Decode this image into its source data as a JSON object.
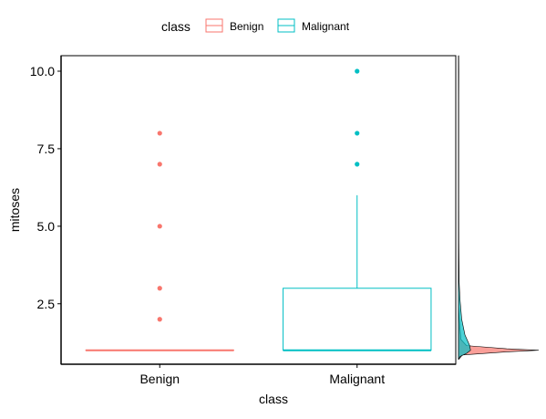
{
  "chart_data": {
    "type": "boxplot",
    "xlabel": "class",
    "ylabel": "mitoses",
    "categories": [
      "Benign",
      "Malignant"
    ],
    "ylim": [
      0.55,
      10.5
    ],
    "yticks": [
      2.5,
      5.0,
      7.5,
      10.0
    ],
    "ytick_labels": [
      "2.5",
      "5.0",
      "7.5",
      "10.0"
    ],
    "grid": false,
    "legend": {
      "title": "class",
      "position": "top",
      "entries": [
        "Benign",
        "Malignant"
      ]
    },
    "colors": {
      "Benign": "#F8766D",
      "Malignant": "#00BFC4"
    },
    "boxes": [
      {
        "category": "Benign",
        "min": 1,
        "q1": 1,
        "median": 1,
        "q3": 1,
        "max": 1,
        "outliers": [
          2,
          3,
          5,
          7,
          8
        ]
      },
      {
        "category": "Malignant",
        "min": 1,
        "q1": 1,
        "median": 1,
        "q3": 3,
        "max": 6,
        "outliers": [
          7,
          8,
          10
        ]
      }
    ],
    "marginal_density": {
      "side": "right",
      "series": [
        {
          "name": "Benign",
          "points": [
            [
              0.7,
              0
            ],
            [
              0.85,
              0.05
            ],
            [
              0.95,
              0.6
            ],
            [
              1.0,
              1.0
            ],
            [
              1.05,
              0.6
            ],
            [
              1.15,
              0.1
            ],
            [
              1.35,
              0.03
            ],
            [
              2.0,
              0.01
            ],
            [
              2.5,
              0
            ],
            [
              10.5,
              0
            ]
          ]
        },
        {
          "name": "Malignant",
          "points": [
            [
              0.7,
              0
            ],
            [
              0.8,
              0.02
            ],
            [
              0.9,
              0.1
            ],
            [
              1.0,
              0.15
            ],
            [
              1.15,
              0.14
            ],
            [
              1.5,
              0.08
            ],
            [
              2.0,
              0.04
            ],
            [
              2.6,
              0.02
            ],
            [
              3.2,
              0.008
            ],
            [
              4.5,
              0.004
            ],
            [
              6,
              0.003
            ],
            [
              7,
              0.003
            ],
            [
              8,
              0.003
            ],
            [
              9,
              0.003
            ],
            [
              10,
              0.004
            ],
            [
              10.5,
              0.003
            ]
          ]
        }
      ]
    }
  }
}
